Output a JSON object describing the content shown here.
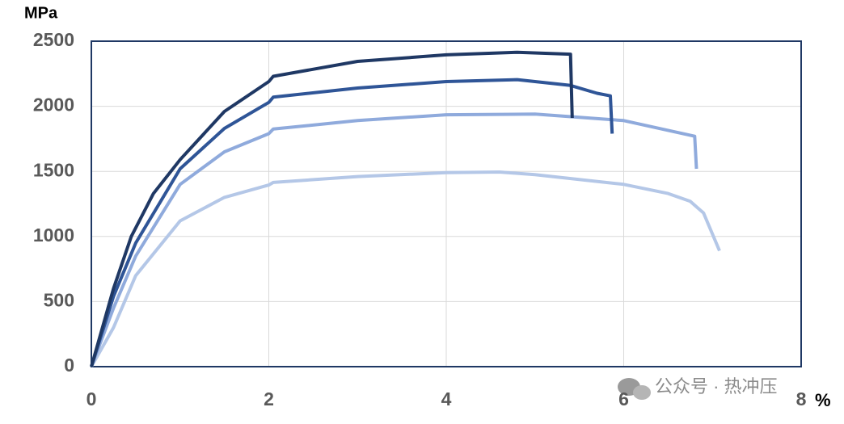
{
  "chart_data": {
    "type": "line",
    "y_label": "MPa",
    "x_label": "%",
    "watermark": "公众号 · 热冲压",
    "xlim": [
      0,
      8
    ],
    "ylim": [
      0,
      2500
    ],
    "xticks": [
      0,
      2,
      4,
      6,
      8
    ],
    "yticks": [
      0,
      500,
      1000,
      1500,
      2000,
      2500
    ],
    "grid": true,
    "series": [
      {
        "color": "#1f3864",
        "x": [
          0,
          0.25,
          0.45,
          0.7,
          1,
          1.5,
          2,
          2.05,
          3,
          4,
          4.8,
          5.4,
          5.42
        ],
        "values": [
          0,
          600,
          1000,
          1330,
          1590,
          1960,
          2190,
          2230,
          2345,
          2395,
          2415,
          2400,
          1910
        ]
      },
      {
        "color": "#2f5597",
        "x": [
          0,
          0.25,
          0.5,
          1,
          1.5,
          2,
          2.05,
          3,
          4,
          4.8,
          5.4,
          5.7,
          5.85,
          5.87
        ],
        "values": [
          0,
          540,
          950,
          1520,
          1830,
          2030,
          2070,
          2140,
          2190,
          2205,
          2160,
          2100,
          2080,
          1790
        ]
      },
      {
        "color": "#8faadc",
        "x": [
          0,
          0.25,
          0.5,
          1,
          1.5,
          2,
          2.05,
          3,
          4,
          5,
          6,
          6.8,
          6.82
        ],
        "values": [
          0,
          450,
          850,
          1400,
          1650,
          1790,
          1825,
          1890,
          1935,
          1940,
          1890,
          1770,
          1520
        ]
      },
      {
        "color": "#b4c7e7",
        "x": [
          0,
          0.25,
          0.5,
          1,
          1.5,
          2,
          2.05,
          3,
          4,
          4.6,
          5,
          6,
          6.5,
          6.75,
          6.9,
          7.08
        ],
        "values": [
          0,
          300,
          700,
          1120,
          1300,
          1395,
          1415,
          1460,
          1490,
          1495,
          1475,
          1400,
          1330,
          1270,
          1180,
          890
        ]
      }
    ]
  }
}
